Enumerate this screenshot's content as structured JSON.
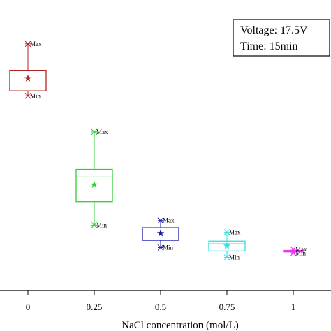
{
  "chart_data": {
    "type": "box",
    "xlabel": "NaCl concentration (mol/L)",
    "ylabel": "",
    "categories": [
      "0",
      "0.25",
      "0.5",
      "0.75",
      "1"
    ],
    "x": [
      0,
      0.25,
      0.5,
      0.75,
      1
    ],
    "xlim": [
      -0.05,
      1.05
    ],
    "ylim": [
      0,
      100
    ],
    "annotations": [
      "Voltage: 17.5V",
      "Time: 15min"
    ],
    "marker_labels": {
      "max": "Max",
      "min": "Min"
    },
    "series": [
      {
        "x": 0,
        "color": "#b22222",
        "max": 84.9,
        "q3": 75.8,
        "median": 75.8,
        "mean": 73.0,
        "q1": 68.7,
        "min": 67.0
      },
      {
        "x": 0.25,
        "color": "#33cc33",
        "max": 54.6,
        "q3": 41.7,
        "median": 39.1,
        "mean": 36.4,
        "q1": 30.6,
        "min": 22.5
      },
      {
        "x": 0.5,
        "color": "#1a1aa6",
        "max": 24.1,
        "q3": 21.6,
        "median": 20.8,
        "mean": 19.7,
        "q1": 17.3,
        "min": 14.8
      },
      {
        "x": 0.75,
        "color": "#33dddd",
        "max": 20.1,
        "q3": 17.0,
        "median": 16.1,
        "mean": 15.4,
        "q1": 13.6,
        "min": 11.4
      },
      {
        "x": 1,
        "color": "#ee33ee",
        "max": 14.2,
        "q3": 13.8,
        "median": 13.6,
        "mean": 13.5,
        "q1": 13.3,
        "min": 12.9
      }
    ]
  }
}
